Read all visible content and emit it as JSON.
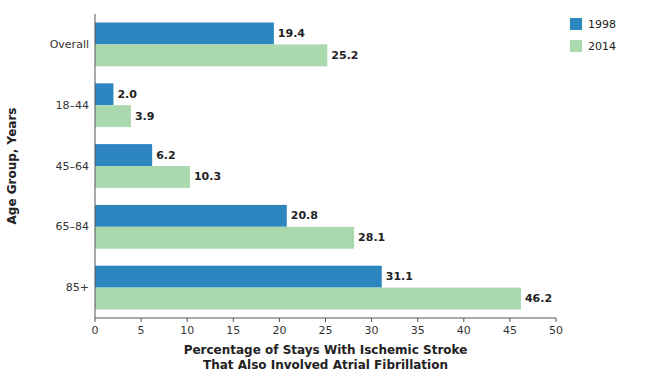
{
  "chart_data": {
    "type": "bar",
    "orientation": "horizontal",
    "categories": [
      "Overall",
      "18–44",
      "45–64",
      "65–84",
      "85+"
    ],
    "series": [
      {
        "name": "1998",
        "color": "#2E86C1",
        "values": [
          19.4,
          2.0,
          6.2,
          20.8,
          31.1
        ],
        "value_labels": [
          "19.4",
          "2.0",
          "6.2",
          "20.8",
          "31.1"
        ]
      },
      {
        "name": "2014",
        "color": "#AAD9B0",
        "values": [
          25.2,
          3.9,
          10.3,
          28.1,
          46.2
        ],
        "value_labels": [
          "25.2",
          "3.9",
          "10.3",
          "28.1",
          "46.2"
        ]
      }
    ],
    "xlabel": "Percentage of Stays With Ischemic Stroke\nThat Also Involved Atrial Fibrillation",
    "ylabel": "Age Group, Years",
    "xlim": [
      0,
      50
    ],
    "xticks": [
      0,
      5,
      10,
      15,
      20,
      25,
      30,
      35,
      40,
      45,
      50
    ],
    "data_labels": true,
    "legend": "right",
    "grid": false
  }
}
